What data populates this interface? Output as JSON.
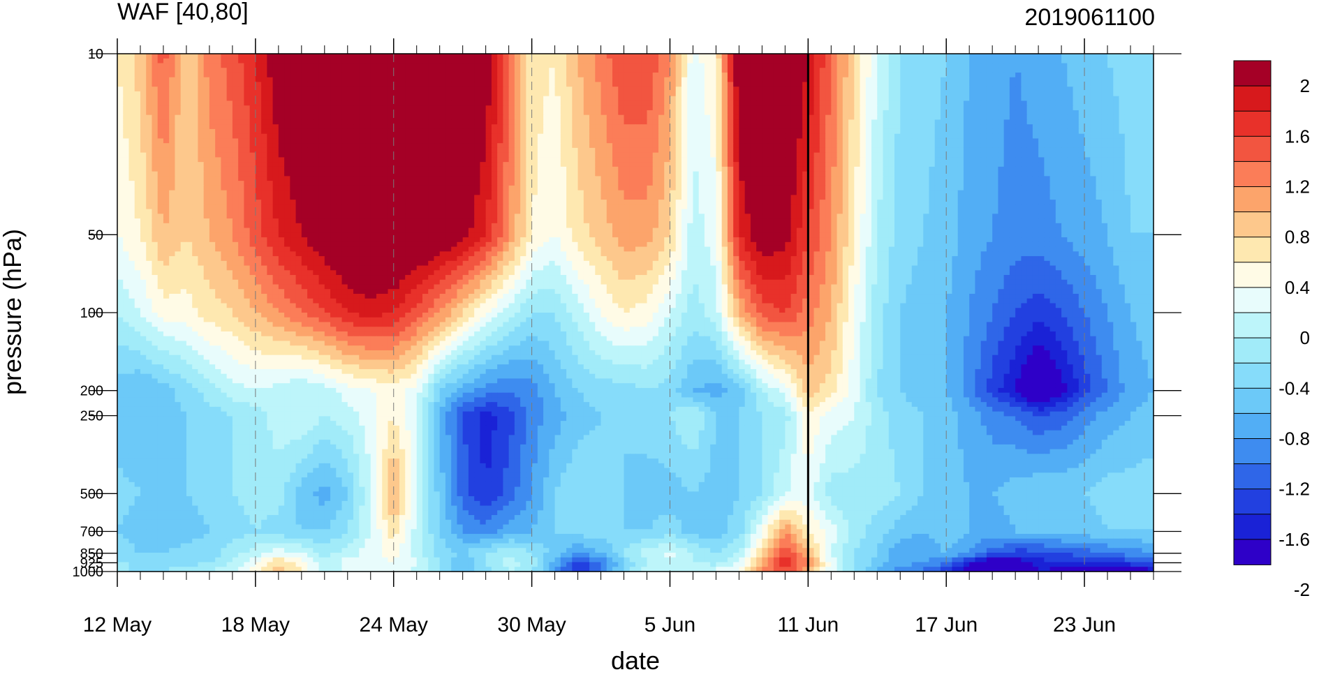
{
  "chart_data": {
    "type": "heatmap",
    "title_left": "WAF [40,80]",
    "title_right": "2019061100",
    "xlabel": "date",
    "ylabel": "pressure (hPa)",
    "y_scale": "log",
    "y_inverted": true,
    "ylim": [
      1000,
      10
    ],
    "x_ticks": [
      "12 May",
      "18 May",
      "24 May",
      "30 May",
      "5 Jun",
      "11 Jun",
      "17 Jun",
      "23 Jun"
    ],
    "x_range": [
      "2019-05-12",
      "2019-06-26"
    ],
    "y_ticks": [
      {
        "value": 10,
        "label": "10"
      },
      {
        "value": 50,
        "label": "50"
      },
      {
        "value": 100,
        "label": "100"
      },
      {
        "value": 200,
        "label": "200"
      },
      {
        "value": 250,
        "label": "250"
      },
      {
        "value": 500,
        "label": "500"
      },
      {
        "value": 700,
        "label": "700"
      },
      {
        "value": 850,
        "label": "850"
      },
      {
        "value": 925,
        "label": "925"
      },
      {
        "value": 1000,
        "label": "1000"
      }
    ],
    "vertical_marker_date": "11 Jun",
    "dashed_gridlines": "x ticks",
    "colorbar": {
      "labels": [
        "2",
        "1.6",
        "1.2",
        "0.8",
        "0.4",
        "0",
        "-0.4",
        "-0.8",
        "-1.2",
        "-1.6",
        "-2"
      ],
      "colors": [
        "#a50026",
        "#d7191c",
        "#e8312a",
        "#f25540",
        "#fb7d58",
        "#fca46b",
        "#fdc88c",
        "#fee8b0",
        "#fffbe6",
        "#e8fcfc",
        "#bdf5fa",
        "#a1ebf9",
        "#86dcfa",
        "#6cc9f8",
        "#52aef5",
        "#3e8cf0",
        "#2f66e8",
        "#2240e0",
        "#1a22d6",
        "#2e00c8"
      ]
    },
    "columns": [
      "12 May",
      "13 May",
      "14 May",
      "15 May",
      "16 May",
      "17 May",
      "18 May",
      "19 May",
      "20 May",
      "21 May",
      "22 May",
      "23 May",
      "24 May",
      "25 May",
      "26 May",
      "27 May",
      "28 May",
      "29 May",
      "30 May",
      "31 May",
      "1 Jun",
      "2 Jun",
      "3 Jun",
      "4 Jun",
      "5 Jun",
      "6 Jun",
      "7 Jun",
      "8 Jun",
      "9 Jun",
      "10 Jun",
      "11 Jun",
      "12 Jun",
      "13 Jun",
      "14 Jun",
      "15 Jun",
      "16 Jun",
      "17 Jun",
      "18 Jun",
      "19 Jun",
      "20 Jun",
      "21 Jun",
      "22 Jun",
      "23 Jun",
      "24 Jun",
      "25 Jun",
      "26 Jun"
    ],
    "values": [
      [
        0.6,
        0.9,
        1.5,
        0.8,
        1.3,
        1.5,
        1.8,
        2.2,
        2.4,
        2.6,
        2.7,
        2.7,
        2.7,
        2.6,
        2.6,
        2.5,
        2.2,
        1.5,
        0.7,
        0.6,
        1.0,
        1.3,
        1.6,
        1.6,
        1.2,
        0.3,
        0.6,
        2.3,
        2.6,
        2.5,
        2.0,
        1.4,
        0.8,
        0.2,
        -0.2,
        -0.3,
        -0.4,
        -0.6,
        -0.7,
        -0.8,
        -0.7,
        -0.6,
        -0.5,
        -0.4,
        -0.3,
        -0.3
      ],
      [
        0.4,
        0.6,
        1.0,
        0.8,
        1.0,
        1.2,
        1.5,
        1.8,
        2.0,
        2.2,
        2.4,
        2.5,
        2.5,
        2.4,
        2.3,
        2.1,
        1.8,
        1.2,
        0.6,
        0.4,
        0.7,
        0.9,
        1.1,
        1.1,
        0.8,
        0.1,
        0.3,
        1.8,
        2.2,
        2.1,
        1.6,
        1.2,
        0.6,
        0.0,
        -0.3,
        -0.4,
        -0.5,
        -0.7,
        -0.8,
        -0.9,
        -0.9,
        -0.8,
        -0.7,
        -0.6,
        -0.4,
        -0.4
      ],
      [
        0.0,
        0.2,
        0.5,
        0.5,
        0.7,
        0.8,
        1.0,
        1.2,
        1.4,
        1.6,
        1.8,
        1.9,
        1.8,
        1.5,
        1.2,
        0.8,
        0.4,
        0.1,
        -0.2,
        -0.2,
        0.1,
        0.4,
        0.6,
        0.5,
        0.2,
        -0.1,
        0.1,
        1.0,
        1.5,
        1.6,
        1.3,
        1.0,
        0.4,
        -0.1,
        -0.4,
        -0.5,
        -0.6,
        -0.8,
        -1.0,
        -1.2,
        -1.3,
        -1.2,
        -1.0,
        -0.8,
        -0.6,
        -0.5
      ],
      [
        -0.5,
        -0.6,
        -0.5,
        -0.3,
        -0.1,
        0.1,
        0.2,
        0.1,
        0.0,
        0.1,
        0.3,
        0.4,
        0.5,
        0.3,
        -0.4,
        -0.7,
        -0.9,
        -1.0,
        -0.9,
        -0.6,
        -0.4,
        -0.3,
        -0.3,
        -0.2,
        -0.3,
        -0.6,
        -0.7,
        -0.5,
        0.0,
        0.3,
        0.9,
        0.7,
        0.3,
        -0.2,
        -0.4,
        -0.5,
        -0.6,
        -0.9,
        -1.3,
        -1.6,
        -2.1,
        -1.7,
        -1.3,
        -1.0,
        -0.7,
        -0.6
      ],
      [
        -0.6,
        -0.6,
        -0.5,
        -0.4,
        -0.3,
        -0.2,
        -0.1,
        0.1,
        0.2,
        0.0,
        0.1,
        0.3,
        0.6,
        0.2,
        -0.6,
        -1.2,
        -1.5,
        -1.3,
        -0.9,
        -0.7,
        -0.5,
        -0.4,
        -0.4,
        -0.3,
        -0.2,
        0.0,
        -0.4,
        -0.4,
        -0.2,
        -0.1,
        0.6,
        0.3,
        0.2,
        -0.1,
        -0.3,
        -0.4,
        -0.5,
        -0.7,
        -0.9,
        -1.0,
        -1.2,
        -1.1,
        -0.9,
        -0.7,
        -0.6,
        -0.5
      ],
      [
        -0.3,
        -0.4,
        -0.5,
        -0.4,
        -0.3,
        -0.2,
        -0.1,
        -0.1,
        -0.5,
        -0.7,
        -0.4,
        0.2,
        1.1,
        0.3,
        -0.5,
        -1.1,
        -1.4,
        -1.1,
        -0.8,
        -0.4,
        -0.2,
        -0.3,
        -0.4,
        -0.5,
        -0.5,
        -0.4,
        -0.5,
        -0.4,
        -0.2,
        0.2,
        0.3,
        -0.1,
        -0.1,
        -0.1,
        -0.2,
        -0.4,
        -0.5,
        -0.6,
        -0.6,
        -0.5,
        -0.4,
        -0.4,
        -0.4,
        -0.3,
        -0.3,
        -0.3
      ],
      [
        -0.4,
        -0.5,
        -0.6,
        -0.5,
        -0.4,
        -0.3,
        -0.2,
        -0.3,
        -0.4,
        -0.4,
        -0.2,
        0.2,
        0.7,
        0.1,
        -0.4,
        -0.8,
        -0.9,
        -0.7,
        -0.6,
        -0.4,
        -0.3,
        -0.3,
        -0.4,
        -0.4,
        -0.3,
        -0.5,
        -0.5,
        -0.3,
        0.4,
        1.2,
        0.6,
        0.3,
        -0.1,
        -0.3,
        -0.5,
        -0.6,
        -0.5,
        -0.6,
        -0.7,
        -0.6,
        -0.5,
        -0.5,
        -0.5,
        -0.4,
        -0.4,
        -0.4
      ],
      [
        -0.3,
        -0.4,
        -0.4,
        -0.3,
        -0.3,
        -0.1,
        0.1,
        0.3,
        0.2,
        -0.1,
        0.1,
        0.3,
        0.5,
        0.1,
        -0.3,
        -0.4,
        -0.2,
        0.0,
        -0.2,
        -0.5,
        -0.8,
        -0.6,
        -0.2,
        0.1,
        0.3,
        0.0,
        -0.2,
        0.0,
        0.8,
        1.6,
        1.0,
        0.2,
        -0.2,
        -0.4,
        -0.8,
        -0.7,
        -0.6,
        -0.8,
        -1.1,
        -1.3,
        -1.3,
        -1.2,
        -1.1,
        -1.0,
        -0.9,
        -0.8
      ],
      [
        -0.2,
        -0.2,
        -0.3,
        -0.3,
        -0.2,
        0.0,
        0.4,
        0.8,
        0.5,
        0.0,
        0.3,
        0.2,
        0.4,
        0.2,
        -0.2,
        -0.6,
        -0.2,
        0.1,
        -0.1,
        -0.7,
        -1.3,
        -1.0,
        -0.4,
        0.0,
        0.1,
        0.0,
        -0.1,
        0.2,
        1.0,
        1.8,
        1.2,
        0.3,
        -0.2,
        -0.5,
        -0.7,
        -0.8,
        -1.0,
        -1.5,
        -1.9,
        -1.8,
        -1.5,
        -1.4,
        -1.5,
        -1.4,
        -1.3,
        -1.2
      ],
      [
        -0.1,
        -0.3,
        -0.2,
        -0.1,
        0.0,
        0.2,
        0.5,
        0.9,
        0.6,
        0.1,
        0.2,
        0.4,
        0.3,
        0.1,
        -0.2,
        -0.5,
        -0.3,
        0.0,
        -0.2,
        -0.8,
        -1.5,
        -1.0,
        -0.3,
        0.2,
        0.0,
        0.2,
        0.3,
        0.5,
        1.2,
        1.6,
        0.9,
        0.3,
        -0.2,
        -0.6,
        -0.9,
        -1.1,
        -1.4,
        -1.8,
        -2.1,
        -1.9,
        -1.6,
        -1.7,
        -2.0,
        -2.0,
        -1.8,
        -1.7
      ],
      [
        -0.1,
        -0.1,
        0.0,
        0.1,
        0.2,
        0.3,
        0.6,
        0.8,
        0.5,
        0.3,
        0.4,
        0.3,
        0.2,
        0.2,
        0.1,
        -0.1,
        -0.1,
        -0.1,
        -0.3,
        -0.6,
        -0.9,
        -0.7,
        -0.2,
        0.1,
        0.0,
        0.2,
        0.3,
        0.6,
        0.9,
        1.2,
        0.6,
        0.2,
        -0.2,
        -0.5,
        -0.8,
        -1.0,
        -1.3,
        -1.6,
        -1.7,
        -1.6,
        -1.5,
        -1.6,
        -1.8,
        -1.8,
        -1.6,
        -1.5
      ]
    ]
  }
}
